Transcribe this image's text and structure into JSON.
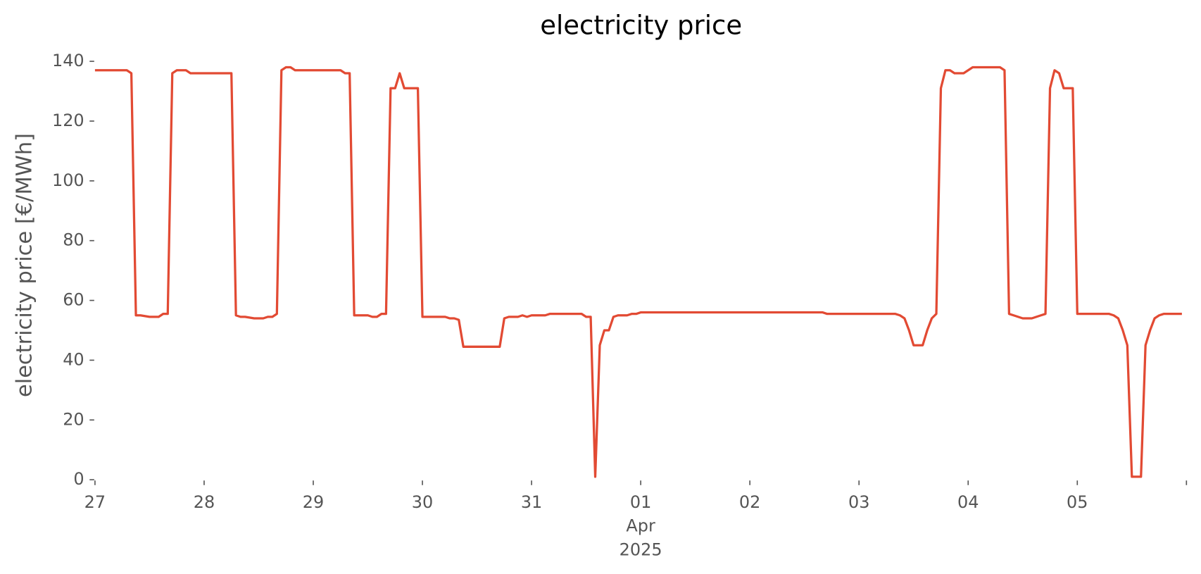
{
  "chart_data": {
    "type": "line",
    "title": "electricity price",
    "ylabel": "electricity price [€/MWh]",
    "x": [
      "2025-03-27T00:00",
      "2025-03-27T07:00",
      "2025-03-27T08:00",
      "2025-03-27T09:00",
      "2025-03-27T10:00",
      "2025-03-27T12:00",
      "2025-03-27T14:00",
      "2025-03-27T15:00",
      "2025-03-27T16:00",
      "2025-03-27T17:00",
      "2025-03-27T18:00",
      "2025-03-27T20:00",
      "2025-03-27T21:00",
      "2025-03-28T06:00",
      "2025-03-28T07:00",
      "2025-03-28T08:00",
      "2025-03-28T09:00",
      "2025-03-28T11:00",
      "2025-03-28T13:00",
      "2025-03-28T14:00",
      "2025-03-28T15:00",
      "2025-03-28T16:00",
      "2025-03-28T17:00",
      "2025-03-28T18:00",
      "2025-03-28T19:00",
      "2025-03-28T20:00",
      "2025-03-29T06:00",
      "2025-03-29T07:00",
      "2025-03-29T08:00",
      "2025-03-29T09:00",
      "2025-03-29T12:00",
      "2025-03-29T13:00",
      "2025-03-29T14:00",
      "2025-03-29T15:00",
      "2025-03-29T16:00",
      "2025-03-29T17:00",
      "2025-03-29T18:00",
      "2025-03-29T19:00",
      "2025-03-29T20:00",
      "2025-03-29T23:00",
      "2025-03-30T00:00",
      "2025-03-30T05:00",
      "2025-03-30T06:00",
      "2025-03-30T07:00",
      "2025-03-30T08:00",
      "2025-03-30T09:00",
      "2025-03-30T17:00",
      "2025-03-30T18:00",
      "2025-03-30T19:00",
      "2025-03-30T21:00",
      "2025-03-30T22:00",
      "2025-03-30T23:00",
      "2025-03-31T00:00",
      "2025-03-31T03:00",
      "2025-03-31T04:00",
      "2025-03-31T11:00",
      "2025-03-31T12:00",
      "2025-03-31T13:00",
      "2025-03-31T14:00",
      "2025-03-31T15:00",
      "2025-03-31T16:00",
      "2025-03-31T17:00",
      "2025-03-31T18:00",
      "2025-03-31T19:00",
      "2025-03-31T21:00",
      "2025-03-31T22:00",
      "2025-03-31T23:00",
      "2025-04-01T00:00",
      "2025-04-02T16:00",
      "2025-04-02T17:00",
      "2025-04-03T08:00",
      "2025-04-03T09:00",
      "2025-04-03T10:00",
      "2025-04-03T11:00",
      "2025-04-03T12:00",
      "2025-04-03T14:00",
      "2025-04-03T15:00",
      "2025-04-03T16:00",
      "2025-04-03T17:00",
      "2025-04-03T18:00",
      "2025-04-03T19:00",
      "2025-04-03T20:00",
      "2025-04-03T21:00",
      "2025-04-03T23:00",
      "2025-04-04T00:00",
      "2025-04-04T01:00",
      "2025-04-04T07:00",
      "2025-04-04T08:00",
      "2025-04-04T09:00",
      "2025-04-04T10:00",
      "2025-04-04T12:00",
      "2025-04-04T14:00",
      "2025-04-04T15:00",
      "2025-04-04T16:00",
      "2025-04-04T17:00",
      "2025-04-04T18:00",
      "2025-04-04T19:00",
      "2025-04-04T20:00",
      "2025-04-04T21:00",
      "2025-04-04T23:00",
      "2025-04-05T00:00",
      "2025-04-05T07:00",
      "2025-04-05T08:00",
      "2025-04-05T09:00",
      "2025-04-05T10:00",
      "2025-04-05T11:00",
      "2025-04-05T12:00",
      "2025-04-05T14:00",
      "2025-04-05T15:00",
      "2025-04-05T16:00",
      "2025-04-05T17:00",
      "2025-04-05T18:00",
      "2025-04-05T19:00",
      "2025-04-05T23:00"
    ],
    "series": [
      {
        "name": "electricity price",
        "color": "#e24a33",
        "values": [
          137,
          137,
          136,
          55,
          55,
          54.5,
          54.5,
          55.5,
          55.5,
          136,
          137,
          137,
          136,
          136,
          55,
          54.5,
          54.5,
          54,
          54,
          54.5,
          54.5,
          55.5,
          137,
          138,
          138,
          137,
          137,
          136,
          136,
          55,
          55,
          54.5,
          54.5,
          55.5,
          55.5,
          131,
          131,
          136,
          131,
          131,
          54.5,
          54.5,
          54,
          54,
          53.5,
          44.5,
          44.5,
          54,
          54.5,
          54.5,
          55,
          54.5,
          55,
          55,
          55.5,
          55.5,
          54.5,
          54.5,
          1,
          45,
          50,
          50,
          54.5,
          55,
          55,
          55.5,
          55.5,
          56,
          56,
          55.5,
          55.5,
          55,
          54,
          50,
          45,
          45,
          50,
          54,
          55.5,
          131,
          137,
          137,
          136,
          136,
          137,
          138,
          138,
          137,
          55.5,
          55,
          54,
          54,
          54.5,
          55,
          55.5,
          131,
          137,
          136,
          131,
          131,
          55.5,
          55.5,
          55,
          54,
          50,
          45,
          1,
          1,
          45,
          50,
          54,
          55,
          55.5,
          55.5
        ]
      }
    ],
    "xlim": [
      "2025-03-27T00:00",
      "2025-04-06T00:00"
    ],
    "xticks": [
      {
        "value": "2025-03-27",
        "label": "27"
      },
      {
        "value": "2025-03-28",
        "label": "28"
      },
      {
        "value": "2025-03-29",
        "label": "29"
      },
      {
        "value": "2025-03-30",
        "label": "30"
      },
      {
        "value": "2025-03-31",
        "label": "31"
      },
      {
        "value": "2025-04-01",
        "label": [
          "01",
          "Apr",
          "2025"
        ]
      },
      {
        "value": "2025-04-02",
        "label": "02"
      },
      {
        "value": "2025-04-03",
        "label": "03"
      },
      {
        "value": "2025-04-04",
        "label": "04"
      },
      {
        "value": "2025-04-05",
        "label": "05"
      },
      {
        "value": "2025-04-06",
        "label": null
      }
    ],
    "ylim": [
      0,
      140
    ],
    "yticks": [
      0,
      20,
      40,
      60,
      80,
      100,
      120,
      140
    ],
    "grid": false
  }
}
